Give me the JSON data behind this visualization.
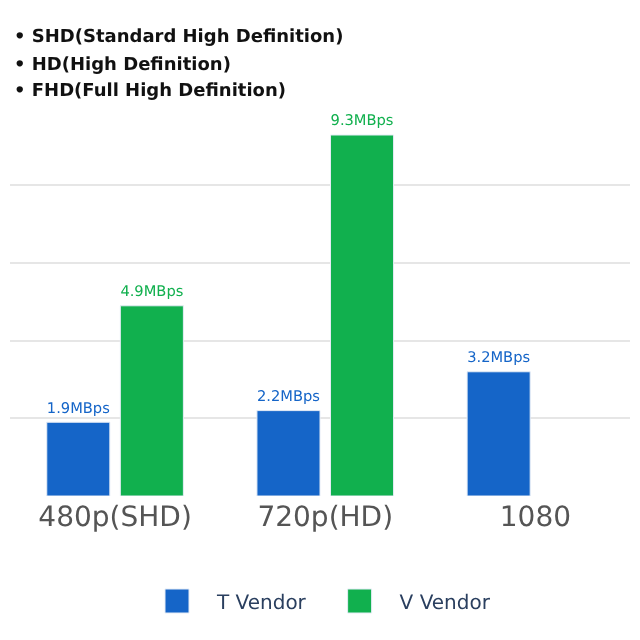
{
  "chart_data": {
    "type": "bar",
    "categories": [
      "480p(SHD)",
      "720p(HD)",
      "1080"
    ],
    "series": [
      {
        "name": "T Vendor",
        "color": "#1565c8",
        "values": [
          1.9,
          2.2,
          3.2
        ],
        "value_labels": [
          "1.9MBps",
          "2.2MBps",
          "3.2MBps"
        ]
      },
      {
        "name": "V Vendor",
        "color": "#11b04e",
        "values": [
          4.9,
          9.3,
          null
        ],
        "value_labels": [
          "4.9MBps",
          "9.3MBps",
          null
        ]
      }
    ],
    "annotations": [
      "• SHD(Standard High Definition)",
      "• HD(High Definition)",
      "• FHD(Full High Definition)"
    ],
    "grid": "y",
    "legend": "bottom",
    "tick_labels": "x"
  }
}
